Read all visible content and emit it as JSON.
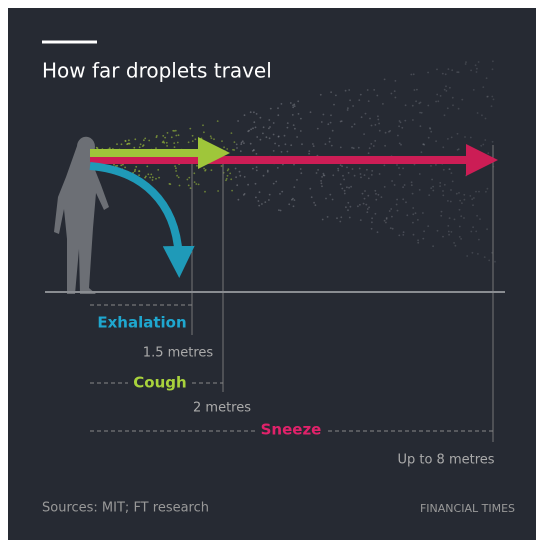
{
  "header": {
    "title": "How far droplets travel"
  },
  "measures": [
    {
      "label": "Exhalation",
      "distance": "1.5 metres"
    },
    {
      "label": "Cough",
      "distance": "2 metres"
    },
    {
      "label": "Sneeze",
      "distance": "Up to 8 metres"
    }
  ],
  "footer": {
    "source": "Sources: MIT; FT research",
    "brand": "FINANCIAL TIMES"
  }
}
